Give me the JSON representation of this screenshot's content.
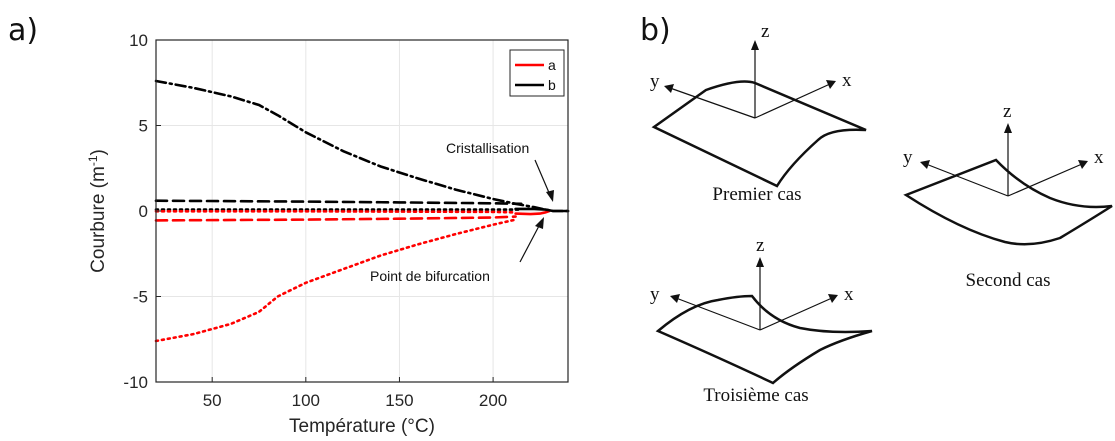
{
  "panel_a_label": "a)",
  "panel_b_label": "b)",
  "chart_data": {
    "type": "line",
    "xlabel": "Température (°C)",
    "ylabel_main": "Courbure (m",
    "ylabel_sup": "-1",
    "ylabel_tail": ")",
    "xlim": [
      20,
      240
    ],
    "ylim": [
      -10,
      10
    ],
    "xticks": [
      50,
      100,
      150,
      200
    ],
    "yticks": [
      -10,
      -5,
      0,
      5,
      10
    ],
    "grid": true,
    "legend_position": "top-right",
    "legend": [
      {
        "label": "a",
        "color": "#ff0000"
      },
      {
        "label": "b",
        "color": "#000000"
      }
    ],
    "series": [
      {
        "color": "#000000",
        "dash": "dashdot",
        "x": [
          20,
          40,
          60,
          75,
          85,
          100,
          120,
          140,
          160,
          180,
          200,
          212,
          222,
          228,
          232,
          240
        ],
        "y": [
          7.6,
          7.2,
          6.7,
          6.2,
          5.6,
          4.6,
          3.5,
          2.6,
          1.9,
          1.25,
          0.7,
          0.42,
          0.22,
          0.08,
          0,
          0
        ]
      },
      {
        "color": "#000000",
        "dash": "dashed",
        "x": [
          20,
          100,
          150,
          200,
          215
        ],
        "y": [
          0.6,
          0.55,
          0.5,
          0.45,
          0.42
        ]
      },
      {
        "color": "#000000",
        "dash": "dotted",
        "x": [
          20,
          100,
          200,
          215
        ],
        "y": [
          0.08,
          0.08,
          0.08,
          0.08
        ]
      },
      {
        "color": "#ff0000",
        "dash": "dotted",
        "x": [
          20,
          40,
          60,
          75,
          85,
          100,
          120,
          140,
          160,
          180,
          200,
          212
        ],
        "y": [
          -7.6,
          -7.2,
          -6.6,
          -5.9,
          -5.0,
          -4.2,
          -3.4,
          -2.6,
          -1.95,
          -1.35,
          -0.8,
          -0.5
        ]
      },
      {
        "color": "#ff0000",
        "dash": "dashed",
        "x": [
          20,
          100,
          150,
          200,
          212
        ],
        "y": [
          -0.55,
          -0.5,
          -0.45,
          -0.38,
          -0.33
        ]
      },
      {
        "color": "#ff0000",
        "dash": "dotted",
        "x": [
          20,
          100,
          200,
          212
        ],
        "y": [
          -0.02,
          -0.02,
          -0.05,
          -0.08
        ]
      },
      {
        "color": "#ff0000",
        "dash": "solid",
        "x": [
          212,
          220,
          225,
          228,
          230
        ],
        "y": [
          -0.15,
          -0.18,
          -0.15,
          -0.08,
          0
        ]
      },
      {
        "color": "#000000",
        "dash": "solid",
        "x": [
          212,
          222,
          228,
          232,
          240
        ],
        "y": [
          0.12,
          0.12,
          0.08,
          0,
          0
        ]
      }
    ],
    "annotations": [
      {
        "text": "Cristallisation",
        "point": [
          229,
          0.2
        ]
      },
      {
        "text": "Point de bifurcation",
        "point": [
          213,
          -0.5
        ]
      }
    ]
  },
  "diagrams": {
    "first": {
      "caption": "Premier cas",
      "x": "x",
      "y": "y",
      "z": "z"
    },
    "second": {
      "caption": "Second cas",
      "x": "x",
      "y": "y",
      "z": "z"
    },
    "third": {
      "caption": "Troisième cas",
      "x": "x",
      "y": "y",
      "z": "z"
    }
  }
}
